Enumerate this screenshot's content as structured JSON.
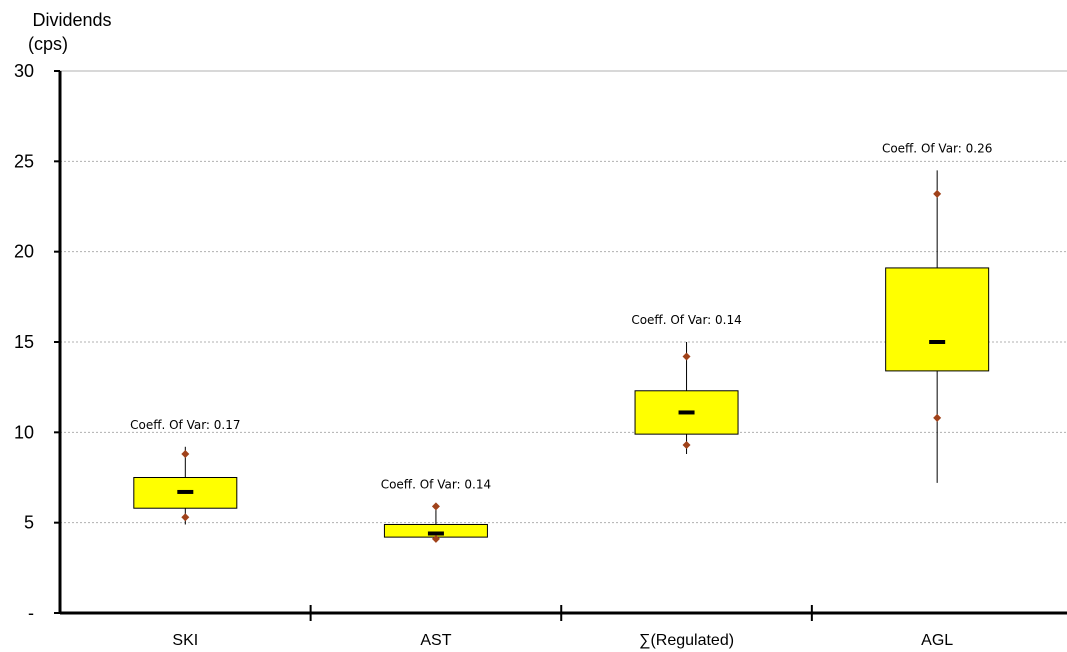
{
  "chart_data": {
    "type": "box",
    "ylabel_line1": "Dividends",
    "ylabel_line2": "(cps)",
    "ylim": [
      0,
      30
    ],
    "yticks": [
      0,
      5,
      10,
      15,
      20,
      25,
      30
    ],
    "ytick_labels": [
      "-",
      "5",
      "10",
      "15",
      "20",
      "25",
      "30"
    ],
    "grid": true,
    "categories": [
      "SKI",
      "AST",
      "∑(Regulated)",
      "AGL"
    ],
    "boxes": [
      {
        "category": "SKI",
        "whisker_low": 4.9,
        "q1": 5.8,
        "median": 6.7,
        "q3": 7.5,
        "whisker_high": 9.2,
        "marker_low": 5.3,
        "marker_high": 8.8,
        "annotation": "Coeff. Of Var: 0.17"
      },
      {
        "category": "AST",
        "whisker_low": 4.0,
        "q1": 4.2,
        "median": 4.4,
        "q3": 4.9,
        "whisker_high": 5.9,
        "marker_low": 4.1,
        "marker_high": 5.9,
        "annotation": "Coeff. Of Var: 0.14"
      },
      {
        "category": "∑(Regulated)",
        "whisker_low": 8.8,
        "q1": 9.9,
        "median": 11.1,
        "q3": 12.3,
        "whisker_high": 15.0,
        "marker_low": 9.3,
        "marker_high": 14.2,
        "annotation": "Coeff. Of Var: 0.14"
      },
      {
        "category": "AGL",
        "whisker_low": 7.2,
        "q1": 13.4,
        "median": 15.0,
        "q3": 19.1,
        "whisker_high": 24.5,
        "marker_low": 10.8,
        "marker_high": 23.2,
        "annotation": "Coeff. Of Var: 0.26"
      }
    ],
    "colors": {
      "box_fill": "#ffff00",
      "box_stroke": "#000000",
      "marker": "#a0421a",
      "grid": "#b0b0b0"
    }
  }
}
